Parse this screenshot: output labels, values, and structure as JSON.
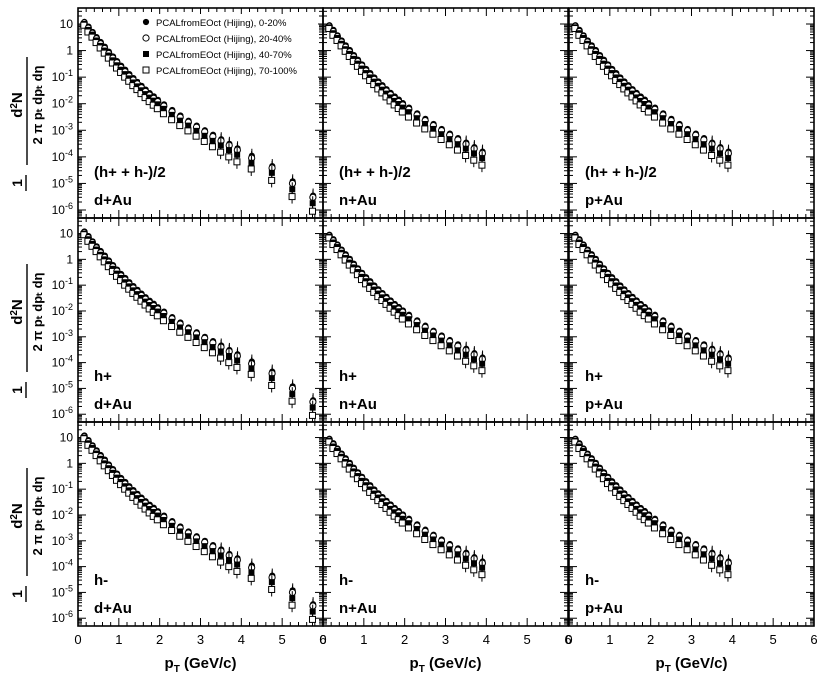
{
  "chart_data": {
    "type": "scatter",
    "description_units": "x: pT in GeV/c; y: invariant yield on log scale",
    "x_axis": {
      "label_main": "p",
      "label_sub": "T",
      "label_unit": " (GeV/c)",
      "range": [
        0,
        6
      ],
      "ticks": [
        "0",
        "1",
        "2",
        "3",
        "4",
        "5",
        "6"
      ]
    },
    "y_axis": {
      "label": "1/(2π pT) d²N/(dpT dη)",
      "range": [
        5e-07,
        40
      ],
      "ticks": [
        {
          "v": 10,
          "t": "10"
        },
        {
          "v": 1,
          "t": "1"
        },
        {
          "v": 0.1,
          "t": "10",
          "sup": "-1"
        },
        {
          "v": 0.01,
          "t": "10",
          "sup": "-2"
        },
        {
          "v": 0.001,
          "t": "10",
          "sup": "-3"
        },
        {
          "v": 0.0001,
          "t": "10",
          "sup": "-4"
        },
        {
          "v": 1e-05,
          "t": "10",
          "sup": "-5"
        },
        {
          "v": 1e-06,
          "t": "10",
          "sup": "-6"
        }
      ]
    },
    "legend": {
      "placement": "top-left",
      "entries": [
        {
          "label": "PCALfromEOct (Hijing), 0-20%",
          "marker": "filled-circle"
        },
        {
          "label": "PCALfromEOct (Hijing), 20-40%",
          "marker": "open-circle"
        },
        {
          "label": "PCALfromEOct (Hijing), 40-70%",
          "marker": "filled-square"
        },
        {
          "label": "PCALfromEOct (Hijing), 70-100%",
          "marker": "open-square"
        }
      ]
    },
    "panels": [
      {
        "row": 0,
        "col": 0,
        "particle": "(h+ + h-)/2",
        "system": "d+Au",
        "max_pt": 5.9,
        "scale": 1.0
      },
      {
        "row": 0,
        "col": 1,
        "particle": "(h+ + h-)/2",
        "system": "n+Au",
        "max_pt": 3.9,
        "scale": 0.75
      },
      {
        "row": 0,
        "col": 2,
        "particle": "(h+ + h-)/2",
        "system": "p+Au",
        "max_pt": 3.9,
        "scale": 0.75
      },
      {
        "row": 1,
        "col": 0,
        "particle": "h+",
        "system": "d+Au",
        "max_pt": 5.9,
        "scale": 1.0
      },
      {
        "row": 1,
        "col": 1,
        "particle": "h+",
        "system": "n+Au",
        "max_pt": 3.9,
        "scale": 0.75
      },
      {
        "row": 1,
        "col": 2,
        "particle": "h+",
        "system": "p+Au",
        "max_pt": 3.9,
        "scale": 0.75
      },
      {
        "row": 2,
        "col": 0,
        "particle": "h-",
        "system": "d+Au",
        "max_pt": 5.9,
        "scale": 1.0
      },
      {
        "row": 2,
        "col": 1,
        "particle": "h-",
        "system": "n+Au",
        "max_pt": 3.9,
        "scale": 0.75
      },
      {
        "row": 2,
        "col": 2,
        "particle": "h-",
        "system": "p+Au",
        "max_pt": 3.9,
        "scale": 0.75
      }
    ],
    "series_points": [
      {
        "pt": 0.15,
        "y": [
          12,
          11,
          10,
          9
        ]
      },
      {
        "pt": 0.25,
        "y": [
          8,
          7,
          6,
          5
        ]
      },
      {
        "pt": 0.35,
        "y": [
          5,
          4.5,
          4,
          3.2
        ]
      },
      {
        "pt": 0.45,
        "y": [
          3.2,
          2.8,
          2.4,
          2
        ]
      },
      {
        "pt": 0.55,
        "y": [
          2.1,
          1.8,
          1.5,
          1.25
        ]
      },
      {
        "pt": 0.65,
        "y": [
          1.4,
          1.2,
          1,
          0.8
        ]
      },
      {
        "pt": 0.75,
        "y": [
          0.9,
          0.78,
          0.65,
          0.52
        ]
      },
      {
        "pt": 0.85,
        "y": [
          0.6,
          0.52,
          0.43,
          0.34
        ]
      },
      {
        "pt": 0.95,
        "y": [
          0.4,
          0.35,
          0.28,
          0.22
        ]
      },
      {
        "pt": 1.05,
        "y": [
          0.27,
          0.23,
          0.19,
          0.15
        ]
      },
      {
        "pt": 1.15,
        "y": [
          0.19,
          0.16,
          0.13,
          0.1
        ]
      },
      {
        "pt": 1.25,
        "y": [
          0.13,
          0.11,
          0.09,
          0.07
        ]
      },
      {
        "pt": 1.35,
        "y": [
          0.092,
          0.078,
          0.063,
          0.048
        ]
      },
      {
        "pt": 1.45,
        "y": [
          0.066,
          0.056,
          0.045,
          0.034
        ]
      },
      {
        "pt": 1.55,
        "y": [
          0.047,
          0.04,
          0.032,
          0.024
        ]
      },
      {
        "pt": 1.65,
        "y": [
          0.034,
          0.029,
          0.023,
          0.017
        ]
      },
      {
        "pt": 1.75,
        "y": [
          0.025,
          0.021,
          0.017,
          0.012
        ]
      },
      {
        "pt": 1.85,
        "y": [
          0.019,
          0.016,
          0.013,
          0.0088
        ]
      },
      {
        "pt": 1.95,
        "y": [
          0.014,
          0.012,
          0.0095,
          0.0065
        ]
      },
      {
        "pt": 2.1,
        "y": [
          0.0095,
          0.0082,
          0.0064,
          0.0042
        ]
      },
      {
        "pt": 2.3,
        "y": [
          0.0058,
          0.005,
          0.0038,
          0.0025
        ]
      },
      {
        "pt": 2.5,
        "y": [
          0.0036,
          0.0031,
          0.0023,
          0.0015
        ]
      },
      {
        "pt": 2.7,
        "y": [
          0.0023,
          0.002,
          0.0015,
          0.00095
        ]
      },
      {
        "pt": 2.9,
        "y": [
          0.0015,
          0.0013,
          0.00095,
          0.0006
        ]
      },
      {
        "pt": 3.1,
        "y": [
          0.001,
          0.00087,
          0.00062,
          0.00038
        ]
      },
      {
        "pt": 3.3,
        "y": [
          0.00068,
          0.00058,
          0.0004,
          0.00024
        ]
      },
      {
        "pt": 3.5,
        "y": [
          0.00046,
          0.0004,
          0.00027,
          0.00015
        ]
      },
      {
        "pt": 3.7,
        "y": [
          0.00031,
          0.00027,
          0.00018,
          0.0001
        ]
      },
      {
        "pt": 3.9,
        "y": [
          0.00021,
          0.00018,
          0.00012,
          6.5e-05
        ]
      },
      {
        "pt": 4.25,
        "y": [
          0.00011,
          9e-05,
          6e-05,
          3.5e-05
        ]
      },
      {
        "pt": 4.75,
        "y": [
          4.5e-05,
          3.8e-05,
          2.5e-05,
          1.3e-05
        ]
      },
      {
        "pt": 5.25,
        "y": [
          1.2e-05,
          1e-05,
          6e-06,
          3.2e-06
        ]
      },
      {
        "pt": 5.75,
        "y": [
          3.5e-06,
          3e-06,
          1.8e-06,
          9e-07
        ]
      }
    ]
  }
}
